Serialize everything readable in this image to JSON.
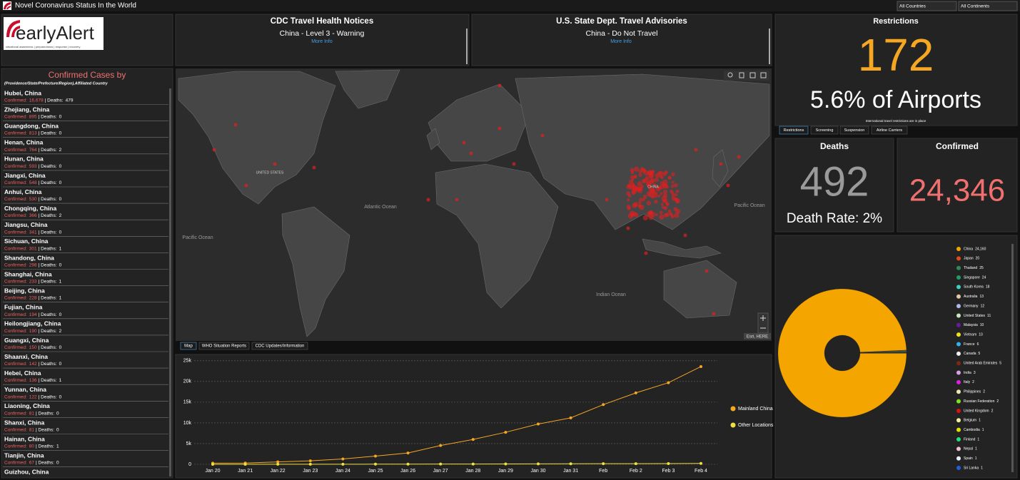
{
  "header": {
    "title": "Novel Coronavirus Status In the World",
    "filters": [
      "All Countries",
      "All Continents"
    ]
  },
  "logo": {
    "name": "earlyAlert",
    "tagline": "situational awareness | preparedness | response | recovery"
  },
  "cases_list": {
    "title": "Confirmed Cases by",
    "subtitle": "(Providence/State/Prefecture/Region),Affiliated Country",
    "confirmed_label": "Confirmed:",
    "deaths_label": "| Deaths:",
    "items": [
      {
        "name": "Hubei, China",
        "confirmed": "16,678",
        "deaths": "479"
      },
      {
        "name": "Zhejiang, China",
        "confirmed": "895",
        "deaths": "0"
      },
      {
        "name": "Guangdong, China",
        "confirmed": "813",
        "deaths": "0"
      },
      {
        "name": "Henan, China",
        "confirmed": "764",
        "deaths": "2"
      },
      {
        "name": "Hunan, China",
        "confirmed": "593",
        "deaths": "0"
      },
      {
        "name": "Jiangxi, China",
        "confirmed": "548",
        "deaths": "0"
      },
      {
        "name": "Anhui, China",
        "confirmed": "530",
        "deaths": "0"
      },
      {
        "name": "Chongqing, China",
        "confirmed": "366",
        "deaths": "2"
      },
      {
        "name": "Jiangsu, China",
        "confirmed": "341",
        "deaths": "0"
      },
      {
        "name": "Sichuan, China",
        "confirmed": "301",
        "deaths": "1"
      },
      {
        "name": "Shandong, China",
        "confirmed": "298",
        "deaths": "0"
      },
      {
        "name": "Shanghai, China",
        "confirmed": "233",
        "deaths": "1"
      },
      {
        "name": "Beijing, China",
        "confirmed": "228",
        "deaths": "1"
      },
      {
        "name": "Fujian, China",
        "confirmed": "194",
        "deaths": "0"
      },
      {
        "name": "Heilongjiang, China",
        "confirmed": "190",
        "deaths": "2"
      },
      {
        "name": "Guangxi, China",
        "confirmed": "150",
        "deaths": "0"
      },
      {
        "name": "Shaanxi, China",
        "confirmed": "142",
        "deaths": "0"
      },
      {
        "name": "Hebei, China",
        "confirmed": "136",
        "deaths": "1"
      },
      {
        "name": "Yunnan, China",
        "confirmed": "122",
        "deaths": "0"
      },
      {
        "name": "Liaoning, China",
        "confirmed": "81",
        "deaths": "0"
      },
      {
        "name": "Shanxi, China",
        "confirmed": "81",
        "deaths": "0"
      },
      {
        "name": "Hainan, China",
        "confirmed": "80",
        "deaths": "1"
      },
      {
        "name": "Tianjin, China",
        "confirmed": "67",
        "deaths": "0"
      },
      {
        "name": "Guizhou, China"
      }
    ]
  },
  "cdc_notice": {
    "title": "CDC Travel Health Notices",
    "text": "China - Level 3 - Warning",
    "link": "More Info"
  },
  "state_advisory": {
    "title": "U.S. State Dept. Travel Advisories",
    "text": "China - Do Not Travel",
    "link": "More Info"
  },
  "map": {
    "labels": [
      "Atlantic Ocean",
      "Pacific Ocean",
      "Indian Ocean",
      "Pacific Ocean",
      "UNITED STATES",
      "CHINA"
    ],
    "attribution": "Esri, HERE"
  },
  "map_tabs": [
    "Map",
    "WHO Situation Reports",
    "CDC Updates/Information"
  ],
  "restrictions": {
    "title": "Restrictions",
    "count": 172,
    "percent_text": "5.6% of Airports",
    "note": "International travel restrictions are in place",
    "tabs": [
      "Restrictions",
      "Screening",
      "Suspension",
      "Airline Carriers"
    ]
  },
  "deaths": {
    "title": "Deaths",
    "count": 492,
    "rate_text": "Death Rate: 2%"
  },
  "confirmed": {
    "title": "Confirmed",
    "count": "24,346"
  },
  "chart_data": [
    {
      "type": "line",
      "categories": [
        "Jan 20",
        "Jan 21",
        "Jan 22",
        "Jan 23",
        "Jan 24",
        "Jan 25",
        "Jan 26",
        "Jan 27",
        "Jan 28",
        "Jan 29",
        "Jan 30",
        "Jan 31",
        "Feb",
        "Feb 2",
        "Feb 3",
        "Feb 4"
      ],
      "series": [
        {
          "name": "Mainland China",
          "color": "#f5a623",
          "values": [
            278,
            309,
            571,
            830,
            1297,
            1985,
            2741,
            4537,
            5997,
            7736,
            9720,
            11221,
            14411,
            17238,
            19700,
            23600
          ]
        },
        {
          "name": "Other Locations",
          "color": "#f0e040",
          "values": [
            4,
            6,
            14,
            19,
            27,
            35,
            48,
            57,
            66,
            76,
            100,
            132,
            146,
            159,
            179,
            207
          ]
        }
      ],
      "ylim": [
        0,
        26000
      ],
      "yticks": [
        0,
        {
          "value": 5000,
          "label": "5k"
        },
        {
          "value": 10000,
          "label": "10k"
        },
        {
          "value": 15000,
          "label": "15k"
        },
        {
          "value": 20000,
          "label": "20k"
        },
        {
          "value": 25000,
          "label": "25k"
        }
      ],
      "grid": true,
      "legend": "right"
    },
    {
      "type": "pie",
      "donut": true,
      "categories": [
        "China",
        "Japan",
        "Thailand",
        "Singapore",
        "South Korea",
        "Australia",
        "Germany",
        "United States",
        "Malaysia",
        "Vietnam",
        "France",
        "Canada",
        "United Arab Emirates",
        "India",
        "Italy",
        "Philippines",
        "Russian Federation",
        "United Kingdom",
        "Belgium",
        "Cambodia",
        "Finland",
        "Nepal",
        "Spain",
        "Sri Lanka"
      ],
      "values": [
        24160,
        20,
        25,
        24,
        18,
        13,
        12,
        11,
        10,
        10,
        6,
        5,
        5,
        3,
        2,
        2,
        2,
        2,
        1,
        1,
        1,
        1,
        1,
        1
      ],
      "value_labels": [
        "24,160",
        "20",
        "25",
        "24",
        "18",
        "13",
        "12",
        "11",
        "10",
        "10",
        "6",
        "5",
        "5",
        "3",
        "2",
        "2",
        "2",
        "2",
        "1",
        "1",
        "1",
        "1",
        "1",
        "1"
      ],
      "colors": [
        "#f5a500",
        "#e34a1b",
        "#2e8b57",
        "#1e9e63",
        "#3cd0c0",
        "#e8c8a0",
        "#b0b8e8",
        "#c8e8c0",
        "#6a1aa0",
        "#f0e020",
        "#30b0f0",
        "#f0f0f0",
        "#7a2a10",
        "#d8a0e8",
        "#e020e0",
        "#f0e8b0",
        "#80e020",
        "#e01010",
        "#f0f0a0",
        "#e0e000",
        "#20e080",
        "#f0c0d0",
        "#e8f0f8",
        "#2060e0"
      ],
      "legend": "right"
    }
  ]
}
